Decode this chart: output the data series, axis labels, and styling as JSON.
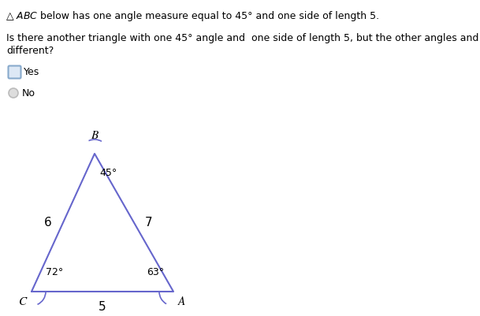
{
  "triangle_color": "#6666cc",
  "vertex_B": [
    120,
    195
  ],
  "vertex_C": [
    40,
    370
  ],
  "vertex_A": [
    220,
    370
  ],
  "label_B": "B",
  "label_C": "C",
  "label_A": "A",
  "angle_B": "45°",
  "angle_C": "72°",
  "angle_A": "63°",
  "side_BC": "6",
  "side_BA": "7",
  "side_CA": "5",
  "bg_color": "#ffffff",
  "text_color": "#000000",
  "checkbox_border_color": "#88aacc",
  "checkbox_fill_color": "#dde8f5",
  "radio_color": "#bbbbbb",
  "font_size_main": 9,
  "font_size_labels": 11,
  "font_size_angles": 9
}
